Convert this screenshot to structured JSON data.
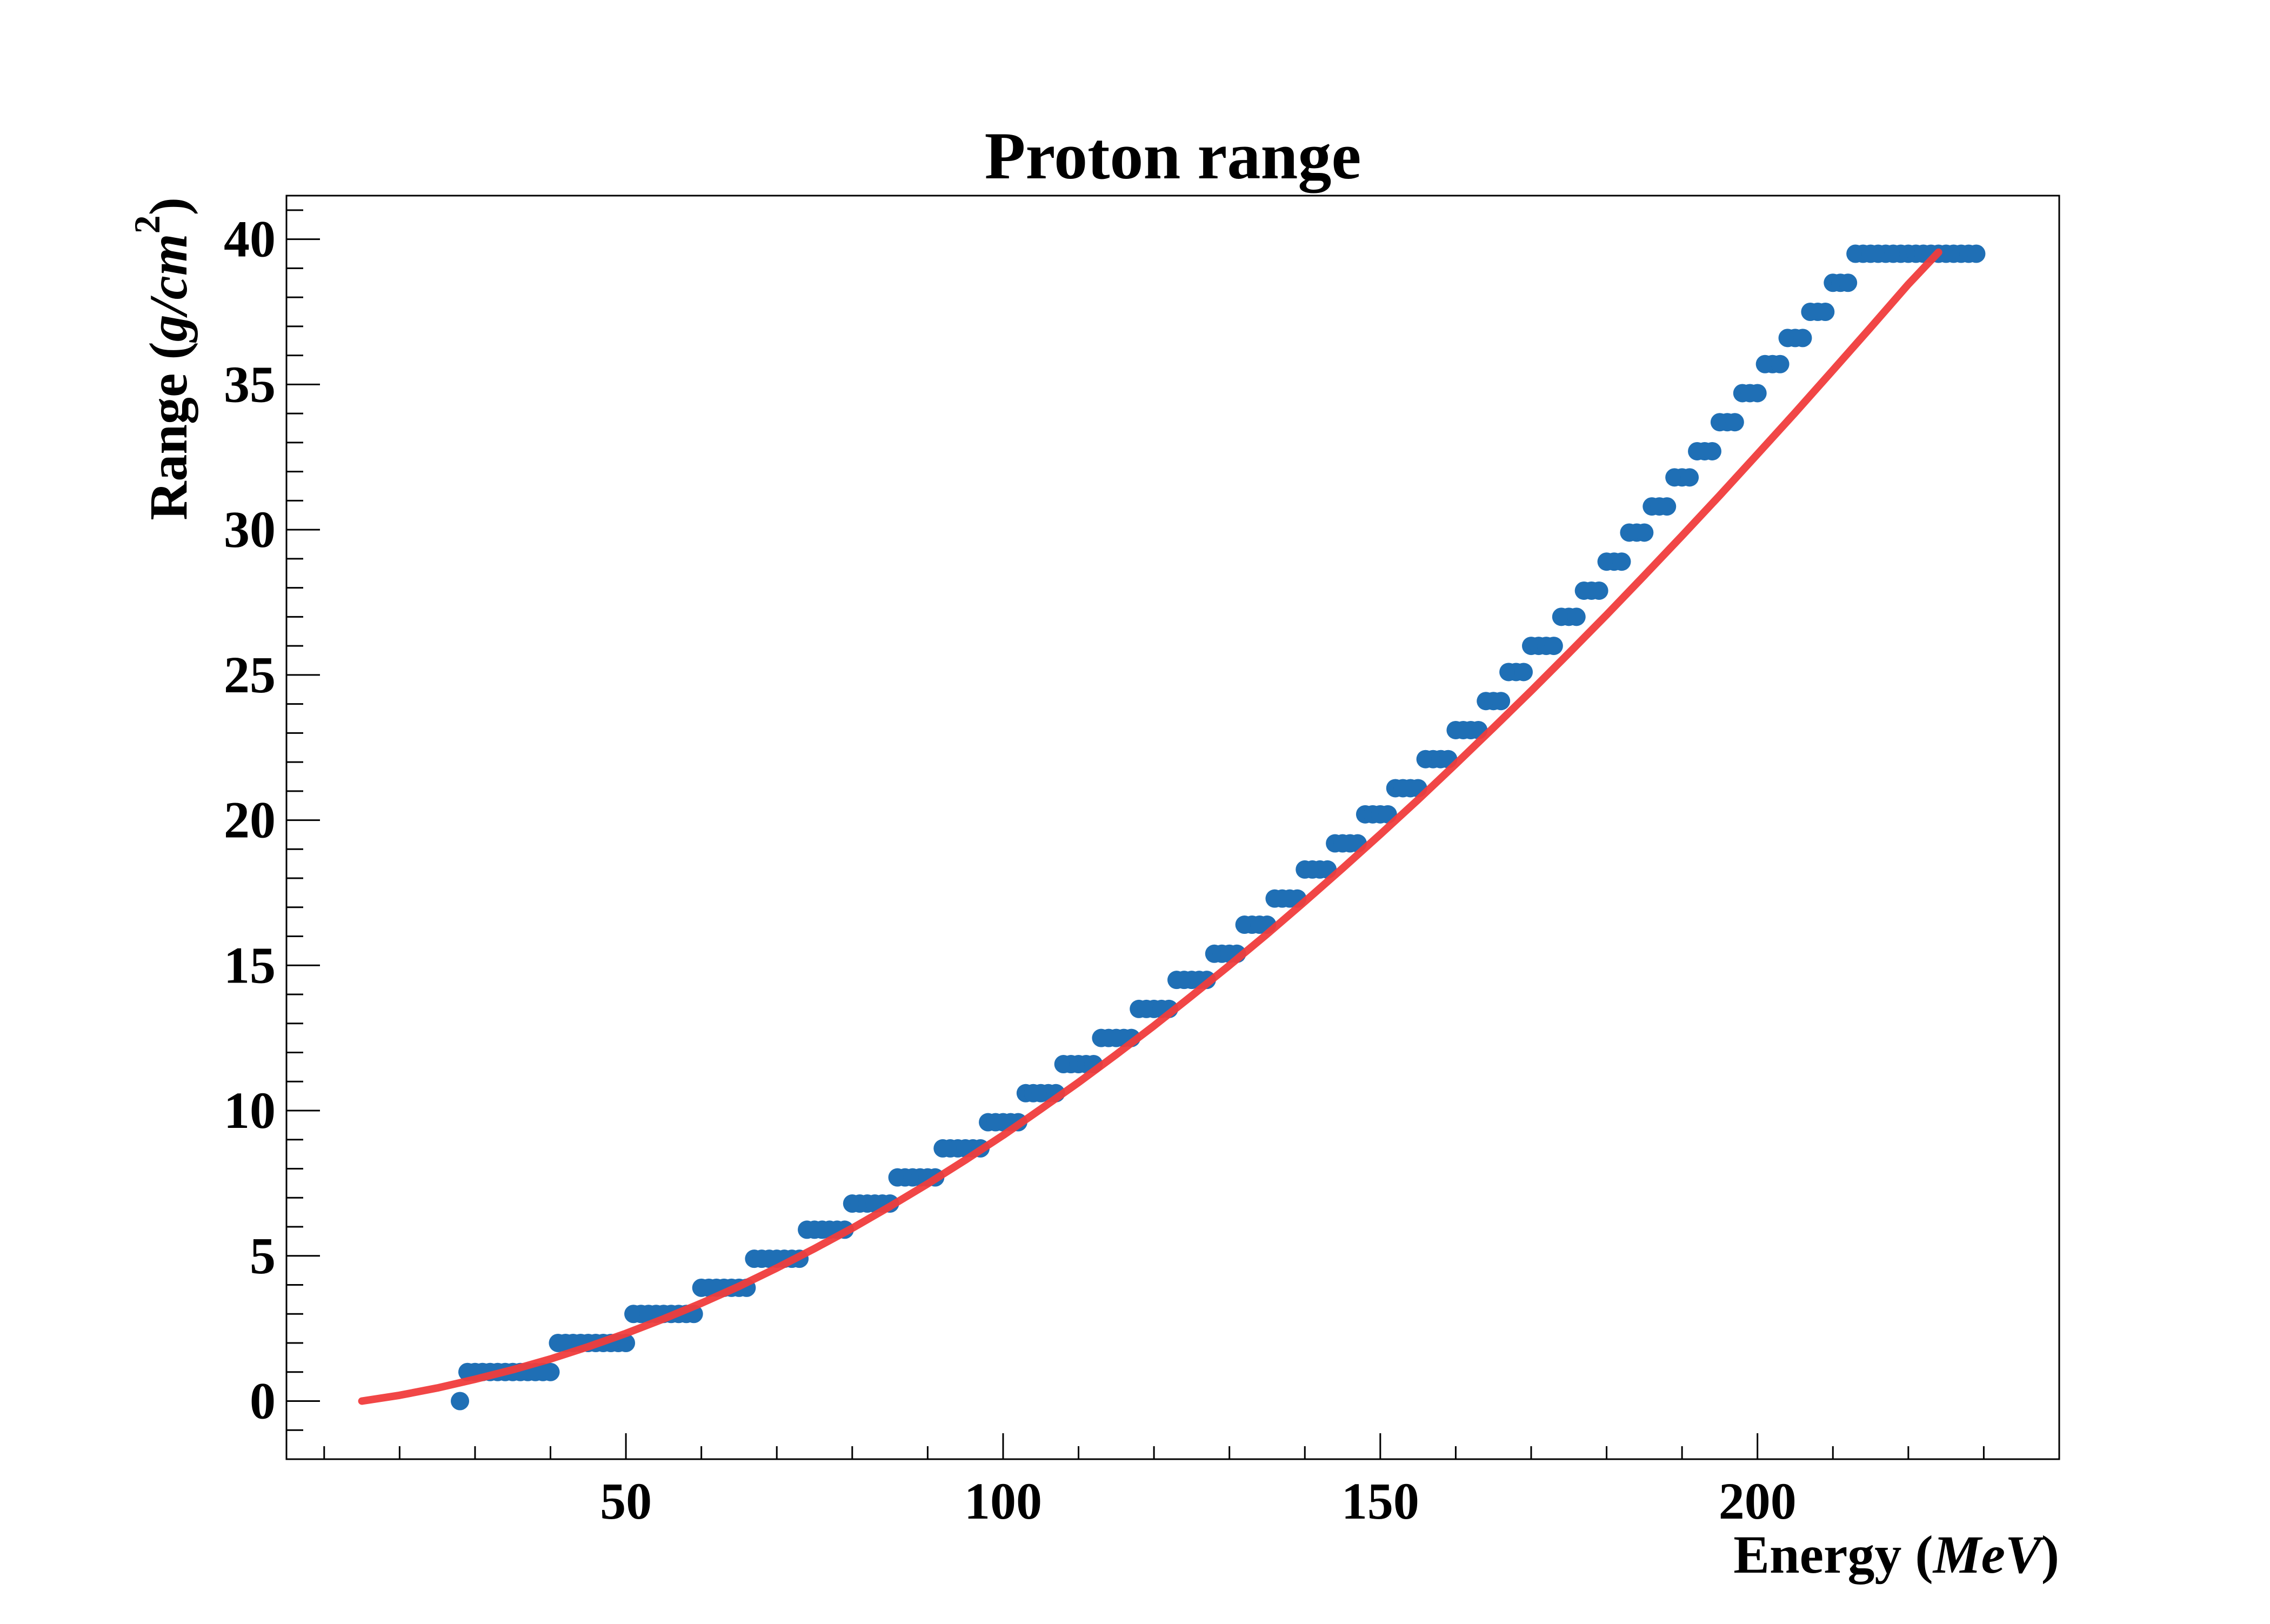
{
  "chart_data": {
    "type": "scatter",
    "title": "Proton range",
    "xlabel": {
      "text": "Energy (",
      "unit": "MeV",
      "close": ")"
    },
    "ylabel": {
      "text": "Range (",
      "unit": "g/cm",
      "sup": "2",
      "close": ")"
    },
    "xlim": [
      5,
      240
    ],
    "ylim": [
      -2,
      41.5
    ],
    "xticks": [
      50,
      100,
      150,
      200
    ],
    "yticks": [
      0,
      5,
      10,
      15,
      20,
      25,
      30,
      35,
      40
    ],
    "xtick_labels": [
      "50",
      "100",
      "150",
      "200"
    ],
    "ytick_labels": [
      "0",
      "5",
      "10",
      "15",
      "20",
      "25",
      "30",
      "35",
      "40"
    ],
    "grid": false,
    "legend": "none",
    "series": [
      {
        "kind": "points",
        "color": "#1f6fb5",
        "points": [
          [
            28,
            0
          ],
          [
            29,
            1
          ],
          [
            30,
            1
          ],
          [
            31,
            1
          ],
          [
            32,
            1
          ],
          [
            33,
            1
          ],
          [
            34,
            1
          ],
          [
            35,
            1
          ],
          [
            36,
            1
          ],
          [
            37,
            1
          ],
          [
            38,
            1
          ],
          [
            39,
            1
          ],
          [
            40,
            1
          ],
          [
            41,
            2
          ],
          [
            42,
            2
          ],
          [
            43,
            2
          ],
          [
            44,
            2
          ],
          [
            45,
            2
          ],
          [
            46,
            2
          ],
          [
            47,
            2
          ],
          [
            48,
            2
          ],
          [
            49,
            2
          ],
          [
            50,
            2
          ],
          [
            51,
            3
          ],
          [
            52,
            3
          ],
          [
            53,
            3
          ],
          [
            54,
            3
          ],
          [
            55,
            3
          ],
          [
            56,
            3
          ],
          [
            57,
            3
          ],
          [
            58,
            3
          ],
          [
            59,
            3
          ],
          [
            60,
            3.9
          ],
          [
            61,
            3.9
          ],
          [
            62,
            3.9
          ],
          [
            63,
            3.9
          ],
          [
            64,
            3.9
          ],
          [
            65,
            3.9
          ],
          [
            66,
            3.9
          ],
          [
            67,
            4.9
          ],
          [
            68,
            4.9
          ],
          [
            69,
            4.9
          ],
          [
            70,
            4.9
          ],
          [
            71,
            4.9
          ],
          [
            72,
            4.9
          ],
          [
            73,
            4.9
          ],
          [
            74,
            5.9
          ],
          [
            75,
            5.9
          ],
          [
            76,
            5.9
          ],
          [
            77,
            5.9
          ],
          [
            78,
            5.9
          ],
          [
            79,
            5.9
          ],
          [
            80,
            6.8
          ],
          [
            81,
            6.8
          ],
          [
            82,
            6.8
          ],
          [
            83,
            6.8
          ],
          [
            84,
            6.8
          ],
          [
            85,
            6.8
          ],
          [
            86,
            7.7
          ],
          [
            87,
            7.7
          ],
          [
            88,
            7.7
          ],
          [
            89,
            7.7
          ],
          [
            90,
            7.7
          ],
          [
            91,
            7.7
          ],
          [
            92,
            8.7
          ],
          [
            93,
            8.7
          ],
          [
            94,
            8.7
          ],
          [
            95,
            8.7
          ],
          [
            96,
            8.7
          ],
          [
            97,
            8.7
          ],
          [
            98,
            9.6
          ],
          [
            99,
            9.6
          ],
          [
            100,
            9.6
          ],
          [
            101,
            9.6
          ],
          [
            102,
            9.6
          ],
          [
            103,
            10.6
          ],
          [
            104,
            10.6
          ],
          [
            105,
            10.6
          ],
          [
            106,
            10.6
          ],
          [
            107,
            10.6
          ],
          [
            108,
            11.6
          ],
          [
            109,
            11.6
          ],
          [
            110,
            11.6
          ],
          [
            111,
            11.6
          ],
          [
            112,
            11.6
          ],
          [
            113,
            12.5
          ],
          [
            114,
            12.5
          ],
          [
            115,
            12.5
          ],
          [
            116,
            12.5
          ],
          [
            117,
            12.5
          ],
          [
            118,
            13.5
          ],
          [
            119,
            13.5
          ],
          [
            120,
            13.5
          ],
          [
            121,
            13.5
          ],
          [
            122,
            13.5
          ],
          [
            123,
            14.5
          ],
          [
            124,
            14.5
          ],
          [
            125,
            14.5
          ],
          [
            126,
            14.5
          ],
          [
            127,
            14.5
          ],
          [
            128,
            15.4
          ],
          [
            129,
            15.4
          ],
          [
            130,
            15.4
          ],
          [
            131,
            15.4
          ],
          [
            132,
            16.4
          ],
          [
            133,
            16.4
          ],
          [
            134,
            16.4
          ],
          [
            135,
            16.4
          ],
          [
            136,
            17.3
          ],
          [
            137,
            17.3
          ],
          [
            138,
            17.3
          ],
          [
            139,
            17.3
          ],
          [
            140,
            18.3
          ],
          [
            141,
            18.3
          ],
          [
            142,
            18.3
          ],
          [
            143,
            18.3
          ],
          [
            144,
            19.2
          ],
          [
            145,
            19.2
          ],
          [
            146,
            19.2
          ],
          [
            147,
            19.2
          ],
          [
            148,
            20.2
          ],
          [
            149,
            20.2
          ],
          [
            150,
            20.2
          ],
          [
            151,
            20.2
          ],
          [
            152,
            21.1
          ],
          [
            153,
            21.1
          ],
          [
            154,
            21.1
          ],
          [
            155,
            21.1
          ],
          [
            156,
            22.1
          ],
          [
            157,
            22.1
          ],
          [
            158,
            22.1
          ],
          [
            159,
            22.1
          ],
          [
            160,
            23.1
          ],
          [
            161,
            23.1
          ],
          [
            162,
            23.1
          ],
          [
            163,
            23.1
          ],
          [
            164,
            24.1
          ],
          [
            165,
            24.1
          ],
          [
            166,
            24.1
          ],
          [
            167,
            25.1
          ],
          [
            168,
            25.1
          ],
          [
            169,
            25.1
          ],
          [
            170,
            26
          ],
          [
            171,
            26
          ],
          [
            172,
            26
          ],
          [
            173,
            26
          ],
          [
            174,
            27
          ],
          [
            175,
            27
          ],
          [
            176,
            27
          ],
          [
            177,
            27.9
          ],
          [
            178,
            27.9
          ],
          [
            179,
            27.9
          ],
          [
            180,
            28.9
          ],
          [
            181,
            28.9
          ],
          [
            182,
            28.9
          ],
          [
            183,
            29.9
          ],
          [
            184,
            29.9
          ],
          [
            185,
            29.9
          ],
          [
            186,
            30.8
          ],
          [
            187,
            30.8
          ],
          [
            188,
            30.8
          ],
          [
            189,
            31.8
          ],
          [
            190,
            31.8
          ],
          [
            191,
            31.8
          ],
          [
            192,
            32.7
          ],
          [
            193,
            32.7
          ],
          [
            194,
            32.7
          ],
          [
            195,
            33.7
          ],
          [
            196,
            33.7
          ],
          [
            197,
            33.7
          ],
          [
            198,
            34.7
          ],
          [
            199,
            34.7
          ],
          [
            200,
            34.7
          ],
          [
            201,
            35.7
          ],
          [
            202,
            35.7
          ],
          [
            203,
            35.7
          ],
          [
            204,
            36.6
          ],
          [
            205,
            36.6
          ],
          [
            206,
            36.6
          ],
          [
            207,
            37.5
          ],
          [
            208,
            37.5
          ],
          [
            209,
            37.5
          ],
          [
            210,
            38.5
          ],
          [
            211,
            38.5
          ],
          [
            212,
            38.5
          ],
          [
            213,
            39.5
          ],
          [
            214,
            39.5
          ],
          [
            215,
            39.5
          ],
          [
            216,
            39.5
          ],
          [
            217,
            39.5
          ],
          [
            218,
            39.5
          ],
          [
            219,
            39.5
          ],
          [
            220,
            39.5
          ],
          [
            221,
            39.5
          ],
          [
            222,
            39.5
          ],
          [
            223,
            39.5
          ],
          [
            224,
            39.5
          ],
          [
            225,
            39.5
          ],
          [
            226,
            39.5
          ],
          [
            227,
            39.5
          ],
          [
            228,
            39.5
          ],
          [
            229,
            39.5
          ]
        ]
      },
      {
        "kind": "fit-curve",
        "color": "#f03c3c",
        "points": [
          [
            15,
            0
          ],
          [
            20,
            0.2
          ],
          [
            25,
            0.45
          ],
          [
            30,
            0.75
          ],
          [
            35,
            1.08
          ],
          [
            40,
            1.45
          ],
          [
            45,
            1.87
          ],
          [
            50,
            2.33
          ],
          [
            55,
            2.83
          ],
          [
            60,
            3.37
          ],
          [
            65,
            3.95
          ],
          [
            70,
            4.58
          ],
          [
            75,
            5.25
          ],
          [
            80,
            5.95
          ],
          [
            85,
            6.7
          ],
          [
            90,
            7.48
          ],
          [
            95,
            8.3
          ],
          [
            100,
            9.15
          ],
          [
            105,
            10.05
          ],
          [
            110,
            10.97
          ],
          [
            115,
            11.93
          ],
          [
            120,
            12.92
          ],
          [
            125,
            13.95
          ],
          [
            130,
            15.0
          ],
          [
            135,
            16.08
          ],
          [
            140,
            17.2
          ],
          [
            145,
            18.34
          ],
          [
            150,
            19.51
          ],
          [
            155,
            20.7
          ],
          [
            160,
            21.93
          ],
          [
            165,
            23.18
          ],
          [
            170,
            24.45
          ],
          [
            175,
            25.75
          ],
          [
            180,
            27.07
          ],
          [
            185,
            28.42
          ],
          [
            190,
            29.79
          ],
          [
            195,
            31.18
          ],
          [
            200,
            32.6
          ],
          [
            205,
            34.03
          ],
          [
            210,
            35.49
          ],
          [
            215,
            36.96
          ],
          [
            220,
            38.45
          ],
          [
            224,
            39.55
          ]
        ]
      }
    ]
  }
}
